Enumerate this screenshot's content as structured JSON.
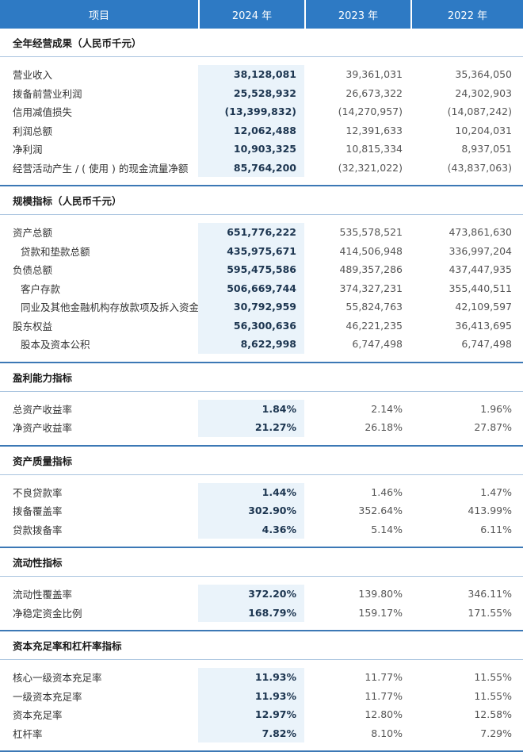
{
  "header": {
    "item": "项目",
    "y2024": "2024 年",
    "y2023": "2023 年",
    "y2022": "2022 年"
  },
  "sections": [
    {
      "title": "全年经营成果（人民币千元）",
      "rows": [
        {
          "label": "营业收入",
          "indent": false,
          "v2024": "38,128,081",
          "v2023": "39,361,031",
          "v2022": "35,364,050"
        },
        {
          "label": "拨备前营业利润",
          "indent": false,
          "v2024": "25,528,932",
          "v2023": "26,673,322",
          "v2022": "24,302,903"
        },
        {
          "label": "信用减值损失",
          "indent": false,
          "v2024": "(13,399,832)",
          "v2023": "(14,270,957)",
          "v2022": "(14,087,242)"
        },
        {
          "label": "利润总额",
          "indent": false,
          "v2024": "12,062,488",
          "v2023": "12,391,633",
          "v2022": "10,204,031"
        },
        {
          "label": "净利润",
          "indent": false,
          "v2024": "10,903,325",
          "v2023": "10,815,334",
          "v2022": "8,937,051"
        },
        {
          "label": "经营活动产生 / ( 使用 ) 的现金流量净额",
          "indent": false,
          "v2024": "85,764,200",
          "v2023": "(32,321,022)",
          "v2022": "(43,837,063)"
        }
      ]
    },
    {
      "title": "规模指标（人民币千元）",
      "rows": [
        {
          "label": "资产总额",
          "indent": false,
          "v2024": "651,776,222",
          "v2023": "535,578,521",
          "v2022": "473,861,630"
        },
        {
          "label": "贷款和垫款总额",
          "indent": true,
          "v2024": "435,975,671",
          "v2023": "414,506,948",
          "v2022": "336,997,204"
        },
        {
          "label": "负债总额",
          "indent": false,
          "v2024": "595,475,586",
          "v2023": "489,357,286",
          "v2022": "437,447,935"
        },
        {
          "label": "客户存款",
          "indent": true,
          "v2024": "506,669,744",
          "v2023": "374,327,231",
          "v2022": "355,440,511"
        },
        {
          "label": "同业及其他金融机构存放款项及拆入资金",
          "indent": true,
          "v2024": "30,792,959",
          "v2023": "55,824,763",
          "v2022": "42,109,597"
        },
        {
          "label": "股东权益",
          "indent": false,
          "v2024": "56,300,636",
          "v2023": "46,221,235",
          "v2022": "36,413,695"
        },
        {
          "label": "股本及资本公积",
          "indent": true,
          "v2024": "8,622,998",
          "v2023": "6,747,498",
          "v2022": "6,747,498"
        }
      ]
    },
    {
      "title": "盈利能力指标",
      "rows": [
        {
          "label": "总资产收益率",
          "indent": false,
          "v2024": "1.84%",
          "v2023": "2.14%",
          "v2022": "1.96%"
        },
        {
          "label": "净资产收益率",
          "indent": false,
          "v2024": "21.27%",
          "v2023": "26.18%",
          "v2022": "27.87%"
        }
      ]
    },
    {
      "title": "资产质量指标",
      "rows": [
        {
          "label": "不良贷款率",
          "indent": false,
          "v2024": "1.44%",
          "v2023": "1.46%",
          "v2022": "1.47%"
        },
        {
          "label": "拨备覆盖率",
          "indent": false,
          "v2024": "302.90%",
          "v2023": "352.64%",
          "v2022": "413.99%"
        },
        {
          "label": "贷款拨备率",
          "indent": false,
          "v2024": "4.36%",
          "v2023": "5.14%",
          "v2022": "6.11%"
        }
      ]
    },
    {
      "title": "流动性指标",
      "rows": [
        {
          "label": "流动性覆盖率",
          "indent": false,
          "v2024": "372.20%",
          "v2023": "139.80%",
          "v2022": "346.11%"
        },
        {
          "label": "净稳定资金比例",
          "indent": false,
          "v2024": "168.79%",
          "v2023": "159.17%",
          "v2022": "171.55%"
        }
      ]
    },
    {
      "title": "资本充足率和杠杆率指标",
      "rows": [
        {
          "label": "核心一级资本充足率",
          "indent": false,
          "v2024": "11.93%",
          "v2023": "11.77%",
          "v2022": "11.55%"
        },
        {
          "label": "一级资本充足率",
          "indent": false,
          "v2024": "11.93%",
          "v2023": "11.77%",
          "v2022": "11.55%"
        },
        {
          "label": "资本充足率",
          "indent": false,
          "v2024": "12.97%",
          "v2023": "12.80%",
          "v2022": "12.58%"
        },
        {
          "label": "杠杆率",
          "indent": false,
          "v2024": "7.82%",
          "v2023": "8.10%",
          "v2022": "7.29%"
        }
      ]
    }
  ],
  "colors": {
    "header_bg": "#2e7ac4",
    "highlight_col": "#eaf3fa",
    "rule": "#3c78b5"
  }
}
